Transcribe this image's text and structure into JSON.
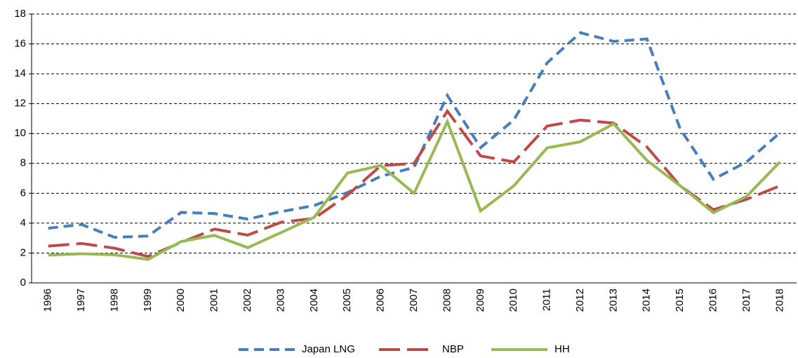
{
  "chart_data": {
    "type": "line",
    "categories": [
      "1996",
      "1997",
      "1998",
      "1999",
      "2000",
      "2001",
      "2002",
      "2003",
      "2004",
      "2005",
      "2006",
      "2007",
      "2008",
      "2009",
      "2010",
      "2011",
      "2012",
      "2013",
      "2014",
      "2015",
      "2016",
      "2017",
      "2018"
    ],
    "series": [
      {
        "name": "Japan LNG",
        "color": "#4a7ebb",
        "dash": "14 8",
        "values": [
          3.66,
          3.91,
          3.05,
          3.14,
          4.72,
          4.64,
          4.27,
          4.77,
          5.18,
          6.05,
          7.14,
          7.73,
          12.55,
          9.06,
          10.91,
          14.73,
          16.75,
          16.17,
          16.33,
          10.31,
          6.94,
          8.1,
          10.05
        ]
      },
      {
        "name": "NBP",
        "color": "#be4b48",
        "dash": "30 10",
        "values": [
          2.46,
          2.64,
          2.32,
          1.77,
          2.71,
          3.6,
          3.2,
          4.06,
          4.32,
          5.88,
          7.85,
          8.0,
          11.5,
          8.5,
          8.1,
          10.5,
          10.9,
          10.7,
          9.1,
          6.5,
          4.9,
          5.6,
          6.5
        ]
      },
      {
        "name": "HH",
        "color": "#98b954",
        "dash": "none",
        "values": [
          1.86,
          1.95,
          1.88,
          1.57,
          2.77,
          3.18,
          2.36,
          3.37,
          4.4,
          7.36,
          7.86,
          6.0,
          10.8,
          4.82,
          6.5,
          9.04,
          9.45,
          10.65,
          8.2,
          6.5,
          4.7,
          5.8,
          8.1
        ]
      }
    ],
    "ylim": [
      0,
      18
    ],
    "yticks": [
      0,
      2,
      4,
      6,
      8,
      10,
      12,
      14,
      16,
      18
    ],
    "grid": true,
    "legend": "bottom"
  }
}
